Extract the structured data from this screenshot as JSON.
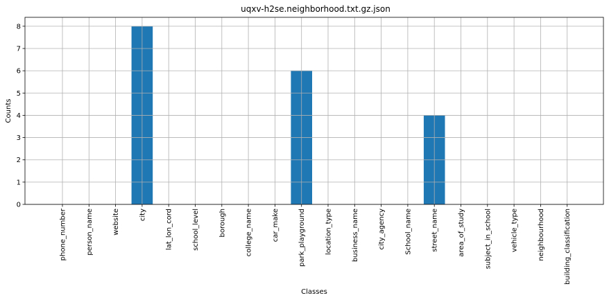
{
  "chart_data": {
    "type": "bar",
    "title": "uqxv-h2se.neighborhood.txt.gz.json",
    "xlabel": "Classes",
    "ylabel": "Counts",
    "ylim": [
      0,
      8.4
    ],
    "yticks": [
      0,
      1,
      2,
      3,
      4,
      5,
      6,
      7,
      8
    ],
    "grid": true,
    "bar_color": "#1f77b4",
    "categories": [
      "phone_number",
      "person_name",
      "website",
      "city",
      "lat_lon_cord",
      "school_level",
      "borough",
      "college_name",
      "car_make",
      "park_playground",
      "location_type",
      "business_name",
      "city_agency",
      "School_name",
      "street_name",
      "area_of_study",
      "subject_in_school",
      "vehicle_type",
      "neighbourhood",
      "building_classification"
    ],
    "values": [
      0,
      0,
      0,
      8,
      0,
      0,
      0,
      0,
      0,
      6,
      0,
      0,
      0,
      0,
      4,
      0,
      0,
      0,
      0,
      0
    ]
  }
}
